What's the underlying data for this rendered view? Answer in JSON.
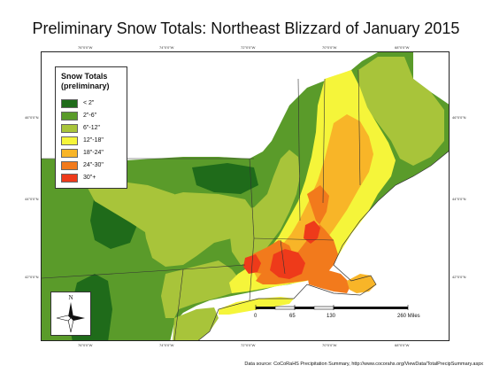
{
  "title": "Preliminary Snow Totals: Northeast Blizzard of January 2015",
  "legend": {
    "title": "Snow Totals",
    "subtitle": "(preliminary)",
    "classes": [
      {
        "label": "< 2\"",
        "color": "#1f6b1a"
      },
      {
        "label": "2\"-6\"",
        "color": "#5a9b2a"
      },
      {
        "label": "6\"-12\"",
        "color": "#a8c43a"
      },
      {
        "label": "12\"-18\"",
        "color": "#f5f53a"
      },
      {
        "label": "18\"-24\"",
        "color": "#f8b528"
      },
      {
        "label": "24\"-30\"",
        "color": "#f27a1c"
      },
      {
        "label": "30\"+",
        "color": "#ee3a1a"
      }
    ]
  },
  "north_arrow": {
    "label": "N"
  },
  "scale_bar": {
    "ticks": [
      "0",
      "65",
      "130",
      "260 Miles"
    ],
    "tick_miles": [
      0,
      65,
      130,
      260
    ]
  },
  "graticule": {
    "top_labels": [
      "76°0'0\"W",
      "74°0'0\"W",
      "72°0'0\"W",
      "70°0'0\"W",
      "68°0'0\"W"
    ],
    "bottom_labels": [
      "76°0'0\"W",
      "74°0'0\"W",
      "72°0'0\"W",
      "70°0'0\"W",
      "68°0'0\"W"
    ],
    "left_labels": [
      "46°0'0\"N",
      "44°0'0\"N",
      "42°0'0\"N"
    ],
    "right_labels": [
      "46°0'0\"N",
      "44°0'0\"N",
      "42°0'0\"N"
    ]
  },
  "source": "Data source: CoCoRaHS Precipitation Summary, http://www.cocorahs.org/ViewData/TotalPrecipSummary.aspx"
}
